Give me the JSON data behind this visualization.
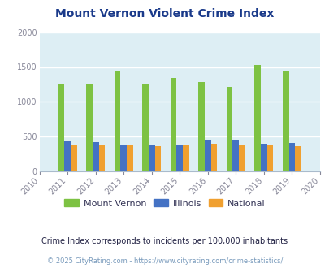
{
  "title": "Mount Vernon Violent Crime Index",
  "all_years": [
    2010,
    2011,
    2012,
    2013,
    2014,
    2015,
    2016,
    2017,
    2018,
    2019,
    2020
  ],
  "data_years": [
    2011,
    2012,
    2013,
    2014,
    2015,
    2016,
    2017,
    2018,
    2019
  ],
  "mount_vernon": [
    1245,
    1248,
    1440,
    1265,
    1340,
    1285,
    1220,
    1525,
    1450
  ],
  "illinois": [
    430,
    425,
    370,
    370,
    385,
    455,
    460,
    400,
    415
  ],
  "national": [
    385,
    380,
    370,
    365,
    375,
    395,
    390,
    375,
    360
  ],
  "ylim": [
    0,
    2000
  ],
  "yticks": [
    0,
    500,
    1000,
    1500,
    2000
  ],
  "color_mv": "#7dc243",
  "color_il": "#4472c4",
  "color_na": "#f0a030",
  "plot_bg": "#ddeef4",
  "grid_color": "#ffffff",
  "bar_width": 0.22,
  "legend_labels": [
    "Mount Vernon",
    "Illinois",
    "National"
  ],
  "footnote1": "Crime Index corresponds to incidents per 100,000 inhabitants",
  "footnote2": "© 2025 CityRating.com - https://www.cityrating.com/crime-statistics/",
  "title_color": "#1a3a8a",
  "footnote1_color": "#222244",
  "footnote2_color": "#7799bb"
}
